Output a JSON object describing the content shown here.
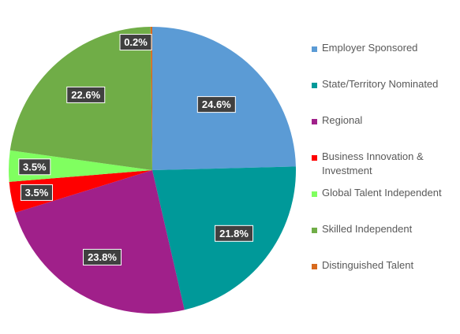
{
  "chart_data": {
    "type": "pie",
    "title": "",
    "start_angle_deg": 0,
    "direction": "clockwise",
    "slices": [
      {
        "name": "Employer Sponsored",
        "value": 24.6,
        "label": "24.6%",
        "color": "#5b9bd5"
      },
      {
        "name": "State/Territory Nominated",
        "value": 21.8,
        "label": "21.8%",
        "color": "#009999"
      },
      {
        "name": "Regional",
        "value": 23.8,
        "label": "23.8%",
        "color": "#a0208a"
      },
      {
        "name": "Business Innovation & Investment",
        "value": 3.5,
        "label": "3.5%",
        "color": "#ff0000"
      },
      {
        "name": "Global Talent Independent",
        "value": 3.5,
        "label": "3.5%",
        "color": "#80ff60"
      },
      {
        "name": "Skilled Independent",
        "value": 22.6,
        "label": "22.6%",
        "color": "#70ad47"
      },
      {
        "name": "Distinguished Talent",
        "value": 0.2,
        "label": "0.2%",
        "color": "#d86a1e"
      }
    ],
    "legend": {
      "position": "right",
      "entries": [
        {
          "line1": "Employer Sponsored",
          "line2": ""
        },
        {
          "line1": "State/Territory Nominated",
          "line2": ""
        },
        {
          "line1": "Regional",
          "line2": ""
        },
        {
          "line1": "Business Innovation &",
          "line2": "Investment"
        },
        {
          "line1": "Global Talent Independent",
          "line2": ""
        },
        {
          "line1": "Skilled Independent",
          "line2": ""
        },
        {
          "line1": "Distinguished Talent",
          "line2": ""
        }
      ]
    },
    "data_label_style": {
      "background": "#404040",
      "text_color": "#ffffff",
      "border": "#ffffff"
    }
  }
}
